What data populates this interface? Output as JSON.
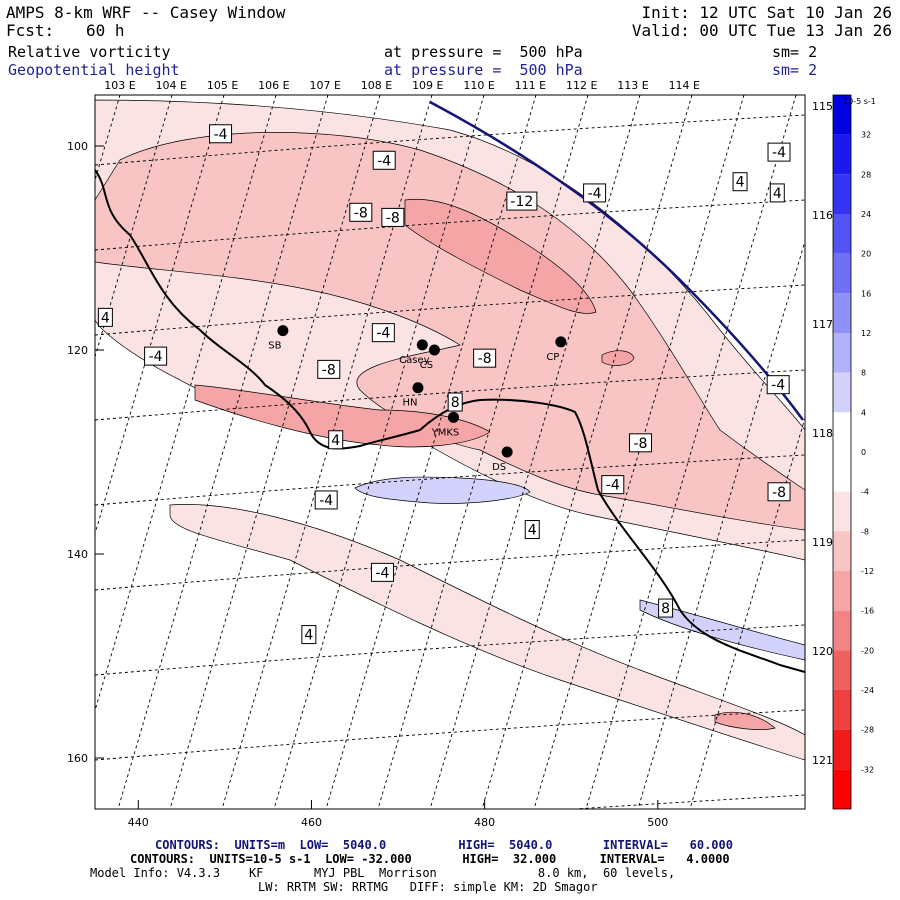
{
  "header": {
    "title": "AMPS 8-km WRF -- Casey Window",
    "fcst_label": "Fcst:",
    "fcst_value": "60 h",
    "init": "Init: 12 UTC Sat 10 Jan 26",
    "valid": "Valid: 00 UTC Tue 13 Jan 26",
    "field1_name": "Relative vorticity",
    "field1_level": "at pressure =  500 hPa",
    "field1_sm": "sm= 2",
    "field2_name": "Geopotential height",
    "field2_level": "at pressure =  500 hPa",
    "field2_sm": "sm= 2"
  },
  "footer": {
    "line1": "CONTOURS:  UNITS=m  LOW=  5040.0          HIGH=  5040.0       INTERVAL=   60.000",
    "line2": "CONTOURS:  UNITS=10-5 s-1  LOW= -32.000       HIGH=  32.000      INTERVAL=   4.0000",
    "line3": "Model Info: V4.3.3    KF       MYJ PBL  Morrison              8.0 km,  60 levels,",
    "line4": "LW: RRTM SW: RRTMG   DIFF: simple KM: 2D Smagor"
  },
  "chart_data": {
    "type": "heatmap",
    "xlim": [
      435,
      517
    ],
    "ylim": [
      165,
      95
    ],
    "x_ticks": [
      440,
      460,
      480,
      500
    ],
    "y_ticks": [
      100,
      120,
      140,
      160
    ],
    "lon_labels_top": [
      "103 E",
      "104 E",
      "105 E",
      "106 E",
      "107 E",
      "108 E",
      "109 E",
      "110 E",
      "111 E",
      "112 E",
      "113 E",
      "114 E"
    ],
    "lon_labels_right": [
      "115 E",
      "116 E",
      "117 E",
      "118 E",
      "119 E",
      "120 E",
      "121 E"
    ],
    "colorbar": {
      "unit": "10-5 s-1",
      "ticks": [
        32,
        28,
        24,
        20,
        16,
        12,
        8,
        4,
        0,
        -4,
        -8,
        -12,
        -16,
        -20,
        -24,
        -28,
        -32
      ],
      "colors": [
        "#0000e0",
        "#1a1aee",
        "#3434f2",
        "#5252f5",
        "#7070f7",
        "#9090f9",
        "#b2b2fb",
        "#d2d2fd",
        "#ffffff",
        "#ffffff",
        "#fbe3e3",
        "#f8c4c4",
        "#f5a5a5",
        "#f28484",
        "#f06262",
        "#ee4040",
        "#f01a1a",
        "#ff0000"
      ]
    },
    "stations": [
      {
        "name": "SB",
        "x": 456.7,
        "y": 118.1
      },
      {
        "name": "Casey",
        "x": 472.8,
        "y": 119.5
      },
      {
        "name": "CS",
        "x": 474.2,
        "y": 120.0
      },
      {
        "name": "HN",
        "x": 472.3,
        "y": 123.7
      },
      {
        "name": "YMKS",
        "x": 476.4,
        "y": 126.6
      },
      {
        "name": "DS",
        "x": 482.6,
        "y": 130.0
      },
      {
        "name": "CP",
        "x": 488.8,
        "y": 119.2
      }
    ],
    "contour_labels": [
      {
        "text": "-4",
        "x": 449.5,
        "y": 98.8
      },
      {
        "text": "-4",
        "x": 468.4,
        "y": 101.4
      },
      {
        "text": "-4",
        "x": 492.7,
        "y": 104.6
      },
      {
        "text": "-4",
        "x": 514.0,
        "y": 100.6
      },
      {
        "text": "4",
        "x": 509.5,
        "y": 103.5
      },
      {
        "text": "4",
        "x": 513.8,
        "y": 104.6
      },
      {
        "text": "-8",
        "x": 465.7,
        "y": 106.5
      },
      {
        "text": "-8",
        "x": 469.4,
        "y": 107.0
      },
      {
        "text": "-12",
        "x": 484.3,
        "y": 105.4
      },
      {
        "text": "4",
        "x": 436.2,
        "y": 116.8
      },
      {
        "text": "-4",
        "x": 468.3,
        "y": 118.3
      },
      {
        "text": "-4",
        "x": 442.0,
        "y": 120.6
      },
      {
        "text": "-8",
        "x": 462.0,
        "y": 121.9
      },
      {
        "text": "-8",
        "x": 480.0,
        "y": 120.8
      },
      {
        "text": "8",
        "x": 476.6,
        "y": 125.1
      },
      {
        "text": "4",
        "x": 462.8,
        "y": 128.8
      },
      {
        "text": "-8",
        "x": 498.0,
        "y": 129.1
      },
      {
        "text": "-4",
        "x": 513.9,
        "y": 123.4
      },
      {
        "text": "-4",
        "x": 494.8,
        "y": 133.2
      },
      {
        "text": "-8",
        "x": 514.0,
        "y": 133.9
      },
      {
        "text": "-4",
        "x": 461.7,
        "y": 134.7
      },
      {
        "text": "4",
        "x": 485.5,
        "y": 137.6
      },
      {
        "text": "-4",
        "x": 468.2,
        "y": 141.8
      },
      {
        "text": "8",
        "x": 500.9,
        "y": 145.3
      },
      {
        "text": "4",
        "x": 459.7,
        "y": 147.9
      }
    ]
  }
}
